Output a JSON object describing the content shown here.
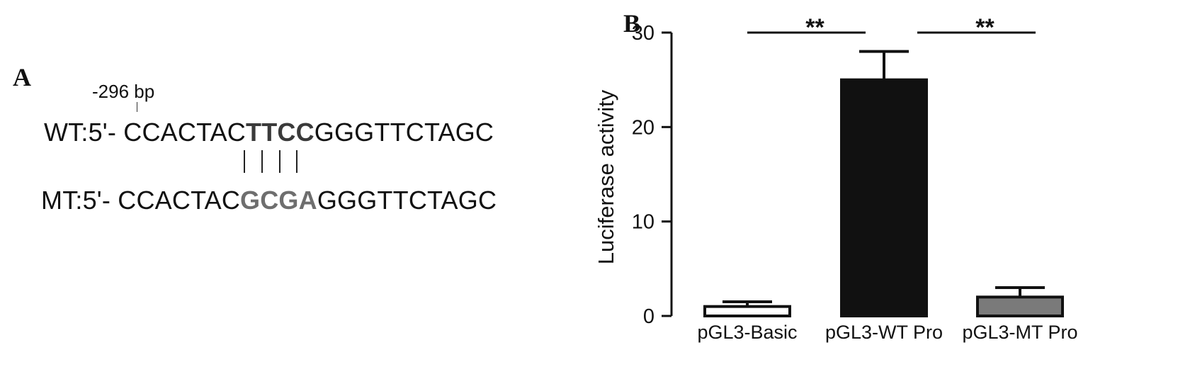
{
  "panel_a": {
    "letter": "A",
    "position_label": "-296 bp",
    "wt": {
      "prefix": "WT:5'- ",
      "before": "CCACTAC",
      "motif": "TTCC",
      "after": "GGGTTCTAGC"
    },
    "mt": {
      "prefix": "MT:5'- ",
      "before": "CCACTAC",
      "motif": "GCGA",
      "after": "GGGTTCTAGC"
    }
  },
  "panel_b": {
    "letter": "B"
  },
  "chart_data": {
    "type": "bar",
    "categories": [
      "pGL3-Basic",
      "pGL3-WT Pro",
      "pGL3-MT Pro"
    ],
    "values": [
      1.0,
      25.0,
      2.0
    ],
    "errors": [
      0.5,
      3.0,
      1.0
    ],
    "bar_colors": [
      "#ffffff",
      "#111111",
      "#7a7a7a"
    ],
    "ylabel": "Luciferase activity",
    "ylim": [
      0,
      30
    ],
    "yticks": [
      "0",
      "10",
      "20",
      "30"
    ],
    "significance": [
      {
        "from": 0,
        "to": 1,
        "label": "**"
      },
      {
        "from": 1,
        "to": 2,
        "label": "**"
      }
    ]
  }
}
